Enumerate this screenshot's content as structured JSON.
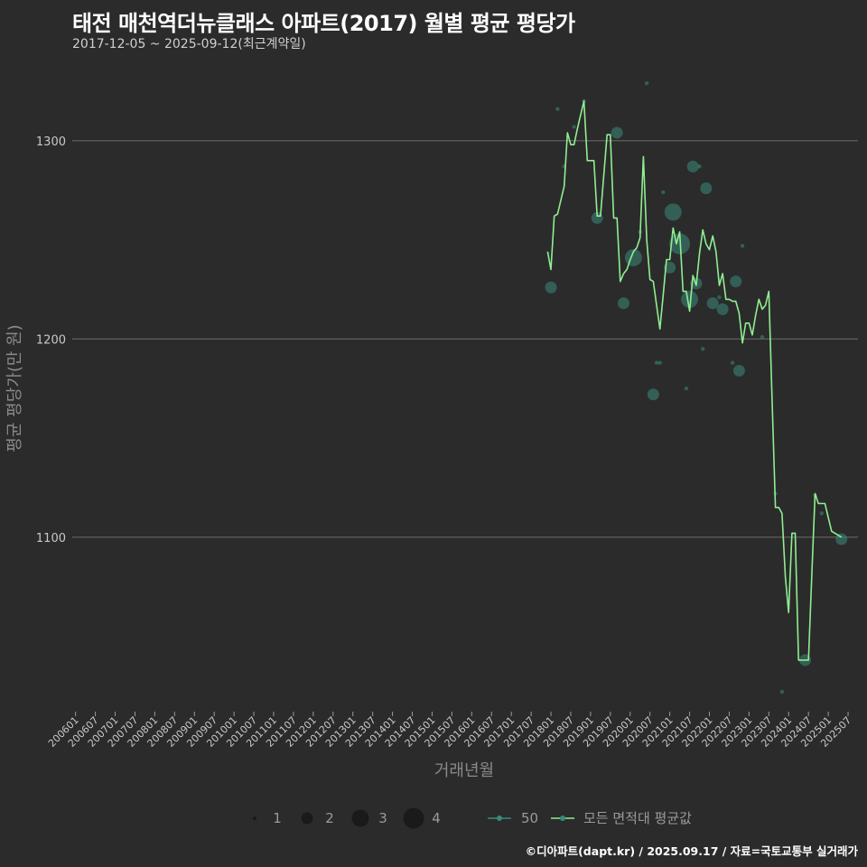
{
  "title": "태전 매천역더뉴클래스 아파트(2017) 월별 평균 평당가",
  "subtitle": "2017-12-05 ~ 2025-09-12(최근계약일)",
  "footer": "©디아파트(dapt.kr) / 2025.09.17 / 자료=국토교통부 실거래가",
  "colors": {
    "line": "#90ee90",
    "points": "#3a8a7a",
    "grid": "#666666",
    "background": "#2b2b2c"
  },
  "chart_data": {
    "type": "line",
    "xlabel": "거래년월",
    "ylabel": "평균 평당가(만 원)",
    "ylim": [
      1012,
      1340
    ],
    "yticks": [
      1100,
      1200,
      1300
    ],
    "x_start": "2006-01",
    "x_end": "2025-09",
    "x_tick_labels": [
      "200601",
      "200607",
      "200701",
      "200707",
      "200801",
      "200807",
      "200901",
      "200907",
      "201001",
      "201007",
      "201101",
      "201107",
      "201201",
      "201207",
      "201301",
      "201307",
      "201401",
      "201407",
      "201501",
      "201507",
      "201601",
      "201607",
      "201701",
      "201707",
      "201801",
      "201807",
      "201901",
      "201907",
      "202001",
      "202007",
      "202101",
      "202107",
      "202201",
      "202207",
      "202301",
      "202307",
      "202401",
      "202407",
      "202501",
      "202507"
    ],
    "legend_size": {
      "values": [
        1,
        2,
        3,
        4
      ]
    },
    "legend_series": [
      {
        "name": "50",
        "kind": "points"
      },
      {
        "name": "모든 면적대 평균값",
        "kind": "line"
      }
    ],
    "series": [
      {
        "name": "모든 면적대 평균값",
        "points": [
          [
            "2017-12",
            1244
          ],
          [
            "2018-01",
            1235
          ],
          [
            "2018-02",
            1262
          ],
          [
            "2018-03",
            1263
          ],
          [
            "2018-04",
            1270
          ],
          [
            "2018-05",
            1277
          ],
          [
            "2018-06",
            1304
          ],
          [
            "2018-07",
            1298
          ],
          [
            "2018-08",
            1298
          ],
          [
            "2018-09",
            1306
          ],
          [
            "2018-10",
            1313
          ],
          [
            "2018-11",
            1320
          ],
          [
            "2018-12",
            1290
          ],
          [
            "2019-01",
            1290
          ],
          [
            "2019-02",
            1290
          ],
          [
            "2019-03",
            1262
          ],
          [
            "2019-04",
            1262
          ],
          [
            "2019-06",
            1303
          ],
          [
            "2019-07",
            1303
          ],
          [
            "2019-08",
            1261
          ],
          [
            "2019-09",
            1261
          ],
          [
            "2019-10",
            1229
          ],
          [
            "2019-11",
            1233
          ],
          [
            "2019-12",
            1235
          ],
          [
            "2020-01",
            1240
          ],
          [
            "2020-02",
            1244
          ],
          [
            "2020-03",
            1246
          ],
          [
            "2020-04",
            1251
          ],
          [
            "2020-05",
            1292
          ],
          [
            "2020-06",
            1250
          ],
          [
            "2020-07",
            1230
          ],
          [
            "2020-08",
            1229
          ],
          [
            "2020-09",
            1217
          ],
          [
            "2020-10",
            1205
          ],
          [
            "2020-11",
            1222
          ],
          [
            "2020-12",
            1240
          ],
          [
            "2021-01",
            1240
          ],
          [
            "2021-02",
            1256
          ],
          [
            "2021-03",
            1248
          ],
          [
            "2021-04",
            1254
          ],
          [
            "2021-05",
            1224
          ],
          [
            "2021-06",
            1224
          ],
          [
            "2021-07",
            1214
          ],
          [
            "2021-08",
            1232
          ],
          [
            "2021-09",
            1227
          ],
          [
            "2021-10",
            1243
          ],
          [
            "2021-11",
            1255
          ],
          [
            "2021-12",
            1248
          ],
          [
            "2022-01",
            1245
          ],
          [
            "2022-02",
            1252
          ],
          [
            "2022-03",
            1244
          ],
          [
            "2022-04",
            1227
          ],
          [
            "2022-05",
            1233
          ],
          [
            "2022-06",
            1220
          ],
          [
            "2022-07",
            1220
          ],
          [
            "2022-08",
            1219
          ],
          [
            "2022-09",
            1219
          ],
          [
            "2022-10",
            1213
          ],
          [
            "2022-11",
            1198
          ],
          [
            "2022-12",
            1208
          ],
          [
            "2023-01",
            1208
          ],
          [
            "2023-02",
            1202
          ],
          [
            "2023-03",
            1212
          ],
          [
            "2023-04",
            1220
          ],
          [
            "2023-05",
            1215
          ],
          [
            "2023-06",
            1217
          ],
          [
            "2023-07",
            1224
          ],
          [
            "2023-08",
            1168
          ],
          [
            "2023-09",
            1115
          ],
          [
            "2023-10",
            1115
          ],
          [
            "2023-11",
            1112
          ],
          [
            "2023-12",
            1080
          ],
          [
            "2024-01",
            1062
          ],
          [
            "2024-02",
            1102
          ],
          [
            "2024-03",
            1102
          ],
          [
            "2024-04",
            1038
          ],
          [
            "2024-05",
            1038
          ],
          [
            "2024-06",
            1038
          ],
          [
            "2024-07",
            1038
          ],
          [
            "2024-08",
            1080
          ],
          [
            "2024-09",
            1122
          ],
          [
            "2024-10",
            1117
          ],
          [
            "2024-11",
            1117
          ],
          [
            "2024-12",
            1117
          ],
          [
            "2025-01",
            1110
          ],
          [
            "2025-02",
            1103
          ],
          [
            "2025-03",
            1102
          ],
          [
            "2025-04",
            1101
          ],
          [
            "2025-05",
            1100
          ]
        ]
      },
      {
        "name": "50",
        "points": [
          [
            "2018-01",
            1226,
            2
          ],
          [
            "2018-03",
            1316,
            1
          ],
          [
            "2018-05",
            1287,
            1
          ],
          [
            "2018-08",
            1307,
            1
          ],
          [
            "2018-11",
            1320,
            1
          ],
          [
            "2019-03",
            1261,
            2
          ],
          [
            "2019-09",
            1304,
            2
          ],
          [
            "2019-11",
            1218,
            2
          ],
          [
            "2020-02",
            1241,
            3
          ],
          [
            "2020-04",
            1254,
            1
          ],
          [
            "2020-06",
            1329,
            1
          ],
          [
            "2020-08",
            1172,
            2
          ],
          [
            "2020-09",
            1188,
            1
          ],
          [
            "2020-10",
            1188,
            1
          ],
          [
            "2020-11",
            1274,
            1
          ],
          [
            "2021-01",
            1236,
            2
          ],
          [
            "2021-02",
            1264,
            3
          ],
          [
            "2021-04",
            1248,
            4
          ],
          [
            "2021-06",
            1175,
            1
          ],
          [
            "2021-07",
            1220,
            3
          ],
          [
            "2021-08",
            1287,
            2
          ],
          [
            "2021-09",
            1228,
            2
          ],
          [
            "2021-10",
            1287,
            1
          ],
          [
            "2021-11",
            1195,
            1
          ],
          [
            "2021-12",
            1276,
            2
          ],
          [
            "2022-02",
            1218,
            2
          ],
          [
            "2022-04",
            1221,
            1
          ],
          [
            "2022-05",
            1215,
            2
          ],
          [
            "2022-08",
            1188,
            1
          ],
          [
            "2022-09",
            1229,
            2
          ],
          [
            "2022-10",
            1184,
            2
          ],
          [
            "2022-11",
            1247,
            1
          ],
          [
            "2023-05",
            1201,
            1
          ],
          [
            "2023-09",
            1122,
            1
          ],
          [
            "2023-11",
            1022,
            1
          ],
          [
            "2024-06",
            1038,
            2
          ],
          [
            "2024-09",
            1121,
            1
          ],
          [
            "2024-11",
            1112,
            1
          ],
          [
            "2025-05",
            1099,
            2
          ]
        ]
      }
    ]
  }
}
